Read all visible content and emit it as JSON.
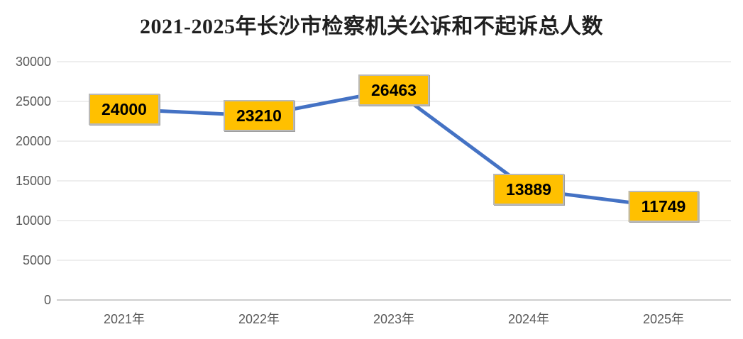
{
  "chart_data": {
    "type": "line",
    "title": "2021-2025年长沙市检察机关公诉和不起诉总人数",
    "categories": [
      "2021年",
      "2022年",
      "2023年",
      "2024年",
      "2025年"
    ],
    "series": [
      {
        "name": "公诉和不起诉总人数",
        "values": [
          24000,
          23210,
          26463,
          13889,
          11749
        ]
      }
    ],
    "data_labels": [
      "24000",
      "23210",
      "26463",
      "13889",
      "11749"
    ],
    "xlabel": "",
    "ylabel": "",
    "ylim": [
      0,
      30000
    ],
    "yticks": [
      0,
      5000,
      10000,
      15000,
      20000,
      25000,
      30000
    ],
    "ytick_labels": [
      "0",
      "5000",
      "10000",
      "15000",
      "20000",
      "25000",
      "30000"
    ],
    "grid": true,
    "legend_position": "none",
    "colors": {
      "line": "#4472C4",
      "label_box_fill": "#FFC000",
      "label_box_border": "#B9B9B9",
      "label_text": "#000000",
      "axis_text": "#595959",
      "gridline": "#E3E3E3",
      "axis_line": "#BFBFBF",
      "title_text": "#1F1F1F",
      "background": "#FFFFFF"
    }
  }
}
